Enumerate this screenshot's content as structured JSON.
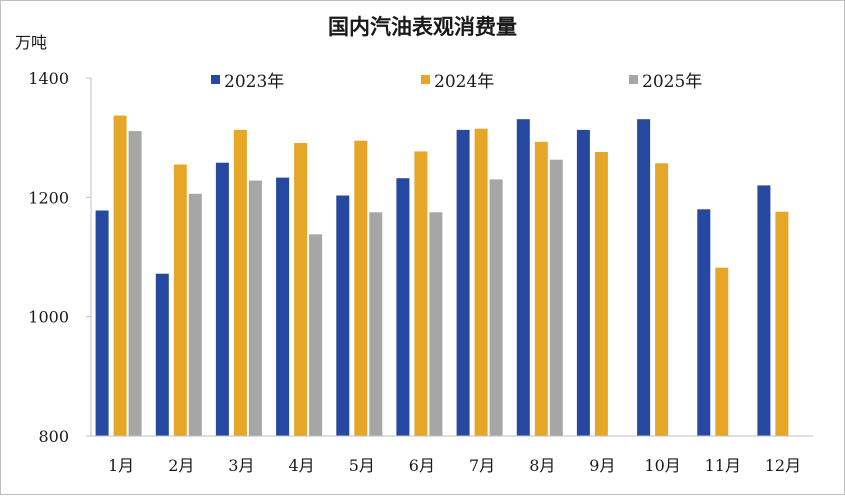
{
  "chart_data": {
    "type": "bar",
    "title": "国内汽油表观消费量",
    "ylabel": "万吨",
    "xlabel": "",
    "ylim": [
      800,
      1400
    ],
    "yticks": [
      800,
      1000,
      1200,
      1400
    ],
    "grid": false,
    "legend_position": "top",
    "categories": [
      "1月",
      "2月",
      "3月",
      "4月",
      "5月",
      "6月",
      "7月",
      "8月",
      "9月",
      "10月",
      "11月",
      "12月"
    ],
    "series": [
      {
        "name": "2023年",
        "color": "#2748a0",
        "values": [
          1178,
          1072,
          1258,
          1233,
          1203,
          1232,
          1313,
          1331,
          1313,
          1331,
          1180,
          1220
        ]
      },
      {
        "name": "2024年",
        "color": "#e6a729",
        "values": [
          1337,
          1255,
          1313,
          1291,
          1295,
          1277,
          1315,
          1293,
          1276,
          1257,
          1082,
          1176
        ]
      },
      {
        "name": "2025年",
        "color": "#a6a6a6",
        "values": [
          1311,
          1206,
          1228,
          1138,
          1175,
          1175,
          1230,
          1263,
          null,
          null,
          null,
          null
        ]
      }
    ]
  }
}
